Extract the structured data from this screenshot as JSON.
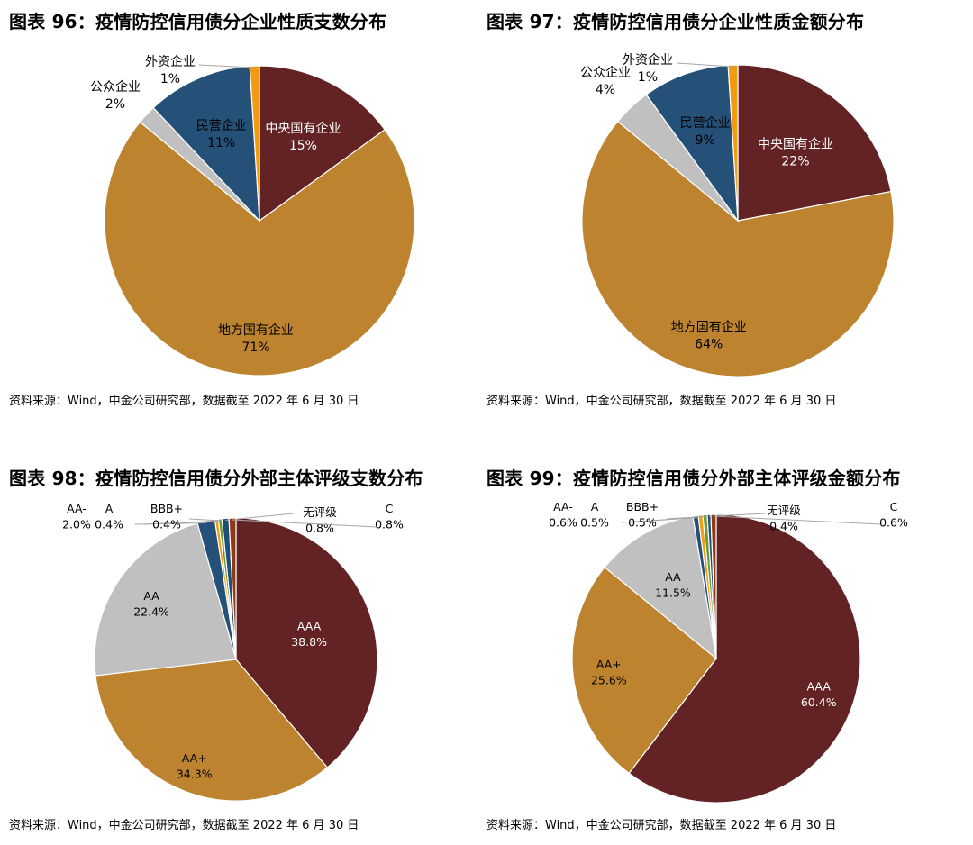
{
  "charts": [
    {
      "title": "图表 96：疫情防控信用债分企业性质支数分布",
      "source": "资料来源：Wind，中金公司研究部，数据截至 2022 年 6 月 30 日",
      "chart_data": {
        "type": "pie",
        "slices": [
          {
            "label": "中央国有企业",
            "pct": "15%",
            "value": 15,
            "color": "#632224"
          },
          {
            "label": "地方国有企业",
            "pct": "71%",
            "value": 71,
            "color": "#BD832F"
          },
          {
            "label": "公众企业",
            "pct": "2%",
            "value": 2,
            "color": "#C0C0C0"
          },
          {
            "label": "民营企业",
            "pct": "11%",
            "value": 11,
            "color": "#255178"
          },
          {
            "label": "外资企业",
            "pct": "1%",
            "value": 1,
            "color": "#F29A12"
          }
        ]
      }
    },
    {
      "title": "图表 97：疫情防控信用债分企业性质金额分布",
      "source": "资料来源：Wind，中金公司研究部，数据截至 2022 年 6 月 30 日",
      "chart_data": {
        "type": "pie",
        "slices": [
          {
            "label": "中央国有企业",
            "pct": "22%",
            "value": 22,
            "color": "#632224"
          },
          {
            "label": "地方国有企业",
            "pct": "64%",
            "value": 64,
            "color": "#BD832F"
          },
          {
            "label": "公众企业",
            "pct": "4%",
            "value": 4,
            "color": "#C0C0C0"
          },
          {
            "label": "民营企业",
            "pct": "9%",
            "value": 9,
            "color": "#255178"
          },
          {
            "label": "外资企业",
            "pct": "1%",
            "value": 1,
            "color": "#F29A12"
          }
        ]
      }
    },
    {
      "title": "图表 98：疫情防控信用债分外部主体评级支数分布",
      "source": "资料来源：Wind，中金公司研究部，数据截至 2022 年 6 月 30 日",
      "chart_data": {
        "type": "pie",
        "slices": [
          {
            "label": "AAA",
            "pct": "38.8%",
            "value": 38.8,
            "color": "#632224"
          },
          {
            "label": "AA+",
            "pct": "34.3%",
            "value": 34.3,
            "color": "#BD832F"
          },
          {
            "label": "AA",
            "pct": "22.4%",
            "value": 22.4,
            "color": "#C0C0C0"
          },
          {
            "label": "AA-",
            "pct": "2.0%",
            "value": 2.0,
            "color": "#255178"
          },
          {
            "label": "A",
            "pct": "0.4%",
            "value": 0.4,
            "color": "#F29A12"
          },
          {
            "label": "BBB+",
            "pct": "0.4%",
            "value": 0.4,
            "color": "#6C9A3A"
          },
          {
            "label": "无评级",
            "pct": "0.8%",
            "value": 0.8,
            "color": "#1F4E79"
          },
          {
            "label": "C",
            "pct": "0.8%",
            "value": 0.8,
            "color": "#8E3A14"
          }
        ]
      }
    },
    {
      "title": "图表 99：疫情防控信用债分外部主体评级金额分布",
      "source": "资料来源：Wind，中金公司研究部，数据截至 2022 年 6 月 30 日",
      "chart_data": {
        "type": "pie",
        "slices": [
          {
            "label": "AAA",
            "pct": "60.4%",
            "value": 60.4,
            "color": "#632224"
          },
          {
            "label": "AA+",
            "pct": "25.6%",
            "value": 25.6,
            "color": "#BD832F"
          },
          {
            "label": "AA",
            "pct": "11.5%",
            "value": 11.5,
            "color": "#C0C0C0"
          },
          {
            "label": "AA-",
            "pct": "0.6%",
            "value": 0.6,
            "color": "#255178"
          },
          {
            "label": "A",
            "pct": "0.5%",
            "value": 0.5,
            "color": "#F29A12"
          },
          {
            "label": "BBB+",
            "pct": "0.5%",
            "value": 0.5,
            "color": "#6C9A3A"
          },
          {
            "label": "无评级",
            "pct": "0.4%",
            "value": 0.4,
            "color": "#1F4E79"
          },
          {
            "label": "C",
            "pct": "0.6%",
            "value": 0.6,
            "color": "#8E3A14"
          }
        ]
      }
    }
  ]
}
